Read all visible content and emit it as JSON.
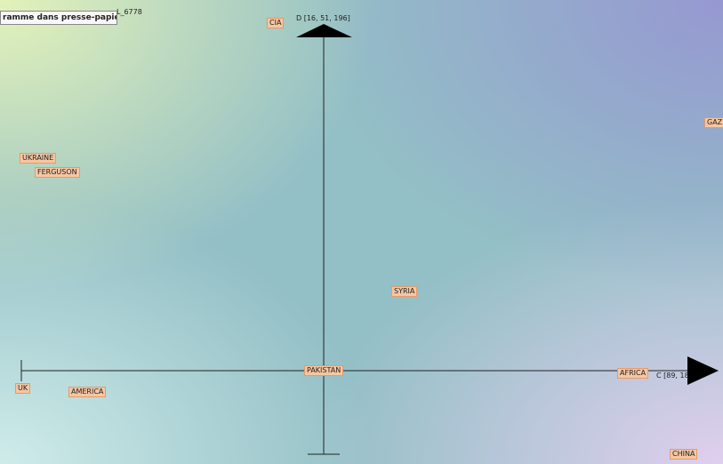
{
  "tooltip": "ramme dans presse-papiers",
  "window_label": "L_6778",
  "axes": {
    "vertical": "D [16, 51, 196]",
    "horizontal": "C [89, 18"
  },
  "terms": [
    "CIA",
    "GAZ",
    "UKRAINE",
    "FERGUSON",
    "SYRIA",
    "PAKISTAN",
    "AFRICA",
    "UK",
    "AMERICA",
    "CHINA"
  ]
}
